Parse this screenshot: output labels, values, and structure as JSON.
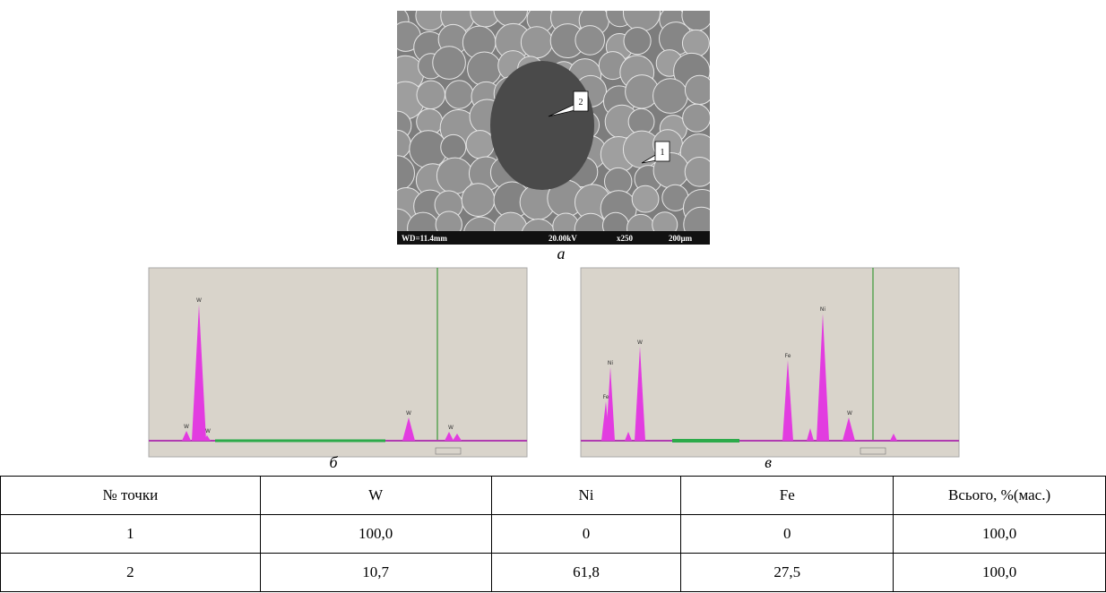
{
  "figure": {
    "micrograph": {
      "info": [
        "WD=11.4mm",
        "20.00kV",
        "x250",
        "200µm"
      ],
      "points": [
        "1",
        "2"
      ],
      "caption": "а"
    },
    "spectra": [
      {
        "caption": "б",
        "peaks": [
          "W",
          "W",
          "W",
          "W",
          "W"
        ]
      },
      {
        "caption": "в",
        "peaks": [
          "Ni",
          "Fe",
          "W",
          "Fe",
          "Ni",
          "W"
        ]
      }
    ]
  },
  "table": {
    "header": [
      "№ точки",
      "W",
      "Ni",
      "Fe",
      "Всього, %(мас.)"
    ],
    "rows": [
      [
        "1",
        "100,0",
        "0",
        "0",
        "100,0"
      ],
      [
        "2",
        "10,7",
        "61,8",
        "27,5",
        "100,0"
      ]
    ]
  }
}
